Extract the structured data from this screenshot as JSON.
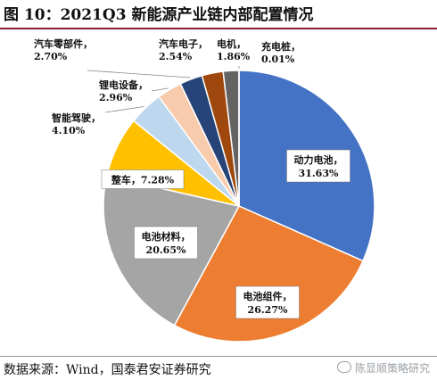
{
  "header": {
    "title": "图 10：2021Q3 新能源产业链内部配置情况"
  },
  "chart_data": {
    "type": "pie",
    "title": "图 10：2021Q3 新能源产业链内部配置情况",
    "slices": [
      {
        "name": "动力电池",
        "value": 31.63,
        "label": "31.63%",
        "color": "#4472c4"
      },
      {
        "name": "电池组件",
        "value": 26.27,
        "label": "26.27%",
        "color": "#ed7d31"
      },
      {
        "name": "电池材料",
        "value": 20.65,
        "label": "20.65%",
        "color": "#a5a5a5"
      },
      {
        "name": "整车",
        "value": 7.28,
        "label": "7.28%",
        "color": "#ffc000"
      },
      {
        "name": "智能驾驶",
        "value": 4.1,
        "label": "4.10%",
        "color": "#bdd7ee"
      },
      {
        "name": "锂电设备",
        "value": 2.96,
        "label": "2.96%",
        "color": "#f8cbad"
      },
      {
        "name": "汽车零部件",
        "value": 2.7,
        "label": "2.70%",
        "color": "#264478"
      },
      {
        "name": "汽车电子",
        "value": 2.54,
        "label": "2.54%",
        "color": "#9e480e"
      },
      {
        "name": "电机",
        "value": 1.86,
        "label": "1.86%",
        "color": "#636363"
      },
      {
        "name": "充电桩",
        "value": 0.01,
        "label": "0.01%",
        "color": "#997300"
      }
    ],
    "legend": "none",
    "start_angle": "12 o'clock, clockwise"
  },
  "footer": {
    "source": "数据来源：Wind，国泰君安证券研究",
    "watermark": "陈显顺策略研究"
  }
}
